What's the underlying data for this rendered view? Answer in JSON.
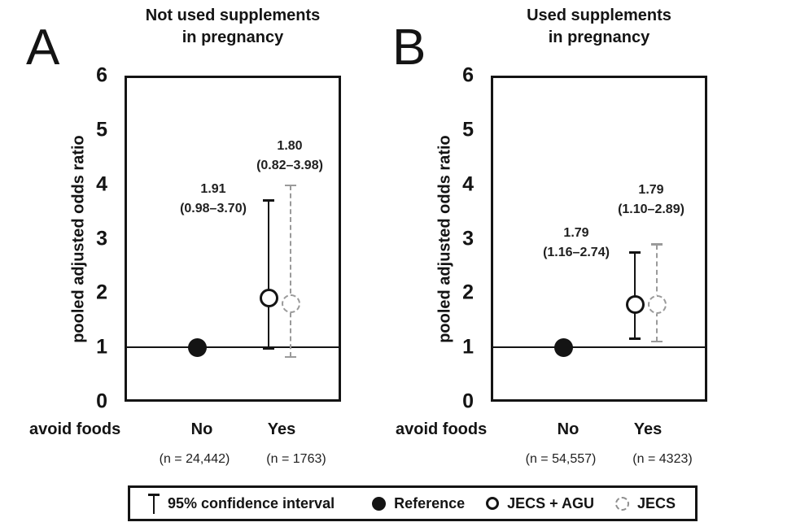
{
  "figure": {
    "colors": {
      "ink": "#141414",
      "dashed_gray": "#9a9a9a",
      "background": "#ffffff"
    },
    "legend": {
      "items": [
        {
          "glyph": "ci-whisker",
          "label": "95% confidence interval"
        },
        {
          "glyph": "filled-circle",
          "label": "Reference"
        },
        {
          "glyph": "open-circle",
          "label": "JECS + AGU"
        },
        {
          "glyph": "dashed-circle",
          "label": "JECS"
        }
      ]
    }
  },
  "chart_data": [
    {
      "type": "scatter",
      "panel": "A",
      "title_lines": [
        "Not used supplements",
        "in pregnancy"
      ],
      "ylabel": "pooled adjusted odds ratio",
      "ylim": [
        0,
        6
      ],
      "yticks": [
        0,
        1,
        2,
        3,
        4,
        5,
        6
      ],
      "reference_line": 1,
      "row_label": "avoid foods",
      "categories": [
        "No",
        "Yes"
      ],
      "n_labels": [
        "(n = 24,442)",
        "(n = 1763)"
      ],
      "series": [
        {
          "name": "Reference",
          "marker": "filled",
          "category": "No",
          "or": 1.0
        },
        {
          "name": "JECS + AGU",
          "marker": "open",
          "category": "Yes",
          "or": 1.91,
          "ci_low": 0.98,
          "ci_high": 3.7,
          "or_text": "1.91",
          "ci_text": "(0.98–3.70)"
        },
        {
          "name": "JECS",
          "marker": "dashed",
          "category": "Yes",
          "or": 1.8,
          "ci_low": 0.82,
          "ci_high": 3.98,
          "or_text": "1.80",
          "ci_text": "(0.82–3.98)"
        }
      ]
    },
    {
      "type": "scatter",
      "panel": "B",
      "title_lines": [
        "Used supplements",
        "in pregnancy"
      ],
      "ylabel": "pooled adjusted odds ratio",
      "ylim": [
        0,
        6
      ],
      "yticks": [
        0,
        1,
        2,
        3,
        4,
        5,
        6
      ],
      "reference_line": 1,
      "row_label": "avoid foods",
      "categories": [
        "No",
        "Yes"
      ],
      "n_labels": [
        "(n = 54,557)",
        "(n = 4323)"
      ],
      "series": [
        {
          "name": "Reference",
          "marker": "filled",
          "category": "No",
          "or": 1.0
        },
        {
          "name": "JECS + AGU",
          "marker": "open",
          "category": "Yes",
          "or": 1.79,
          "ci_low": 1.16,
          "ci_high": 2.74,
          "or_text": "1.79",
          "ci_text": "(1.16–2.74)"
        },
        {
          "name": "JECS",
          "marker": "dashed",
          "category": "Yes",
          "or": 1.79,
          "ci_low": 1.1,
          "ci_high": 2.89,
          "or_text": "1.79",
          "ci_text": "(1.10–2.89)"
        }
      ]
    }
  ]
}
